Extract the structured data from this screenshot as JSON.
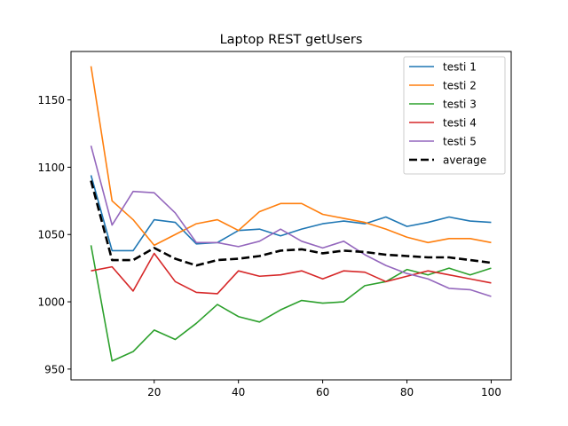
{
  "chart_data": {
    "type": "line",
    "title": "Laptop REST getUsers",
    "xlabel": "",
    "ylabel": "",
    "x": [
      5,
      10,
      15,
      20,
      25,
      30,
      35,
      40,
      45,
      50,
      55,
      60,
      65,
      70,
      75,
      80,
      85,
      90,
      95,
      100
    ],
    "xlim": [
      0.25,
      104.75
    ],
    "ylim": [
      942,
      1186
    ],
    "xticks": [
      20,
      40,
      60,
      80,
      100
    ],
    "yticks": [
      950,
      1000,
      1050,
      1100,
      1150
    ],
    "grid": false,
    "legend_position": "top-right",
    "series": [
      {
        "name": "testi 1",
        "color": "#1f77b4",
        "dash": "solid",
        "values": [
          1094,
          1038,
          1038,
          1061,
          1059,
          1043,
          1044,
          1053,
          1054,
          1049,
          1054,
          1058,
          1060,
          1058,
          1063,
          1056,
          1059,
          1063,
          1060,
          1059
        ]
      },
      {
        "name": "testi 2",
        "color": "#ff7f0e",
        "dash": "solid",
        "values": [
          1175,
          1075,
          1061,
          1042,
          1050,
          1058,
          1061,
          1053,
          1067,
          1073,
          1073,
          1065,
          1062,
          1059,
          1054,
          1048,
          1044,
          1047,
          1047,
          1044
        ]
      },
      {
        "name": "testi 3",
        "color": "#2ca02c",
        "dash": "solid",
        "values": [
          1042,
          956,
          963,
          979,
          972,
          984,
          998,
          989,
          985,
          994,
          1001,
          999,
          1000,
          1012,
          1015,
          1024,
          1020,
          1025,
          1020,
          1025
        ]
      },
      {
        "name": "testi 4",
        "color": "#d62728",
        "dash": "solid",
        "values": [
          1023,
          1026,
          1008,
          1036,
          1015,
          1007,
          1006,
          1023,
          1019,
          1020,
          1023,
          1017,
          1023,
          1022,
          1015,
          1019,
          1023,
          1020,
          1017,
          1014
        ]
      },
      {
        "name": "testi 5",
        "color": "#9467bd",
        "dash": "solid",
        "values": [
          1116,
          1057,
          1082,
          1081,
          1066,
          1044,
          1044,
          1041,
          1045,
          1054,
          1045,
          1040,
          1045,
          1035,
          1027,
          1021,
          1017,
          1010,
          1009,
          1004
        ]
      },
      {
        "name": "average",
        "color": "#000000",
        "dash": "dashed",
        "values": [
          1090,
          1031,
          1031,
          1040,
          1032,
          1027,
          1031,
          1032,
          1034,
          1038,
          1039,
          1036,
          1038,
          1037,
          1035,
          1034,
          1033,
          1033,
          1031,
          1029
        ]
      }
    ]
  }
}
